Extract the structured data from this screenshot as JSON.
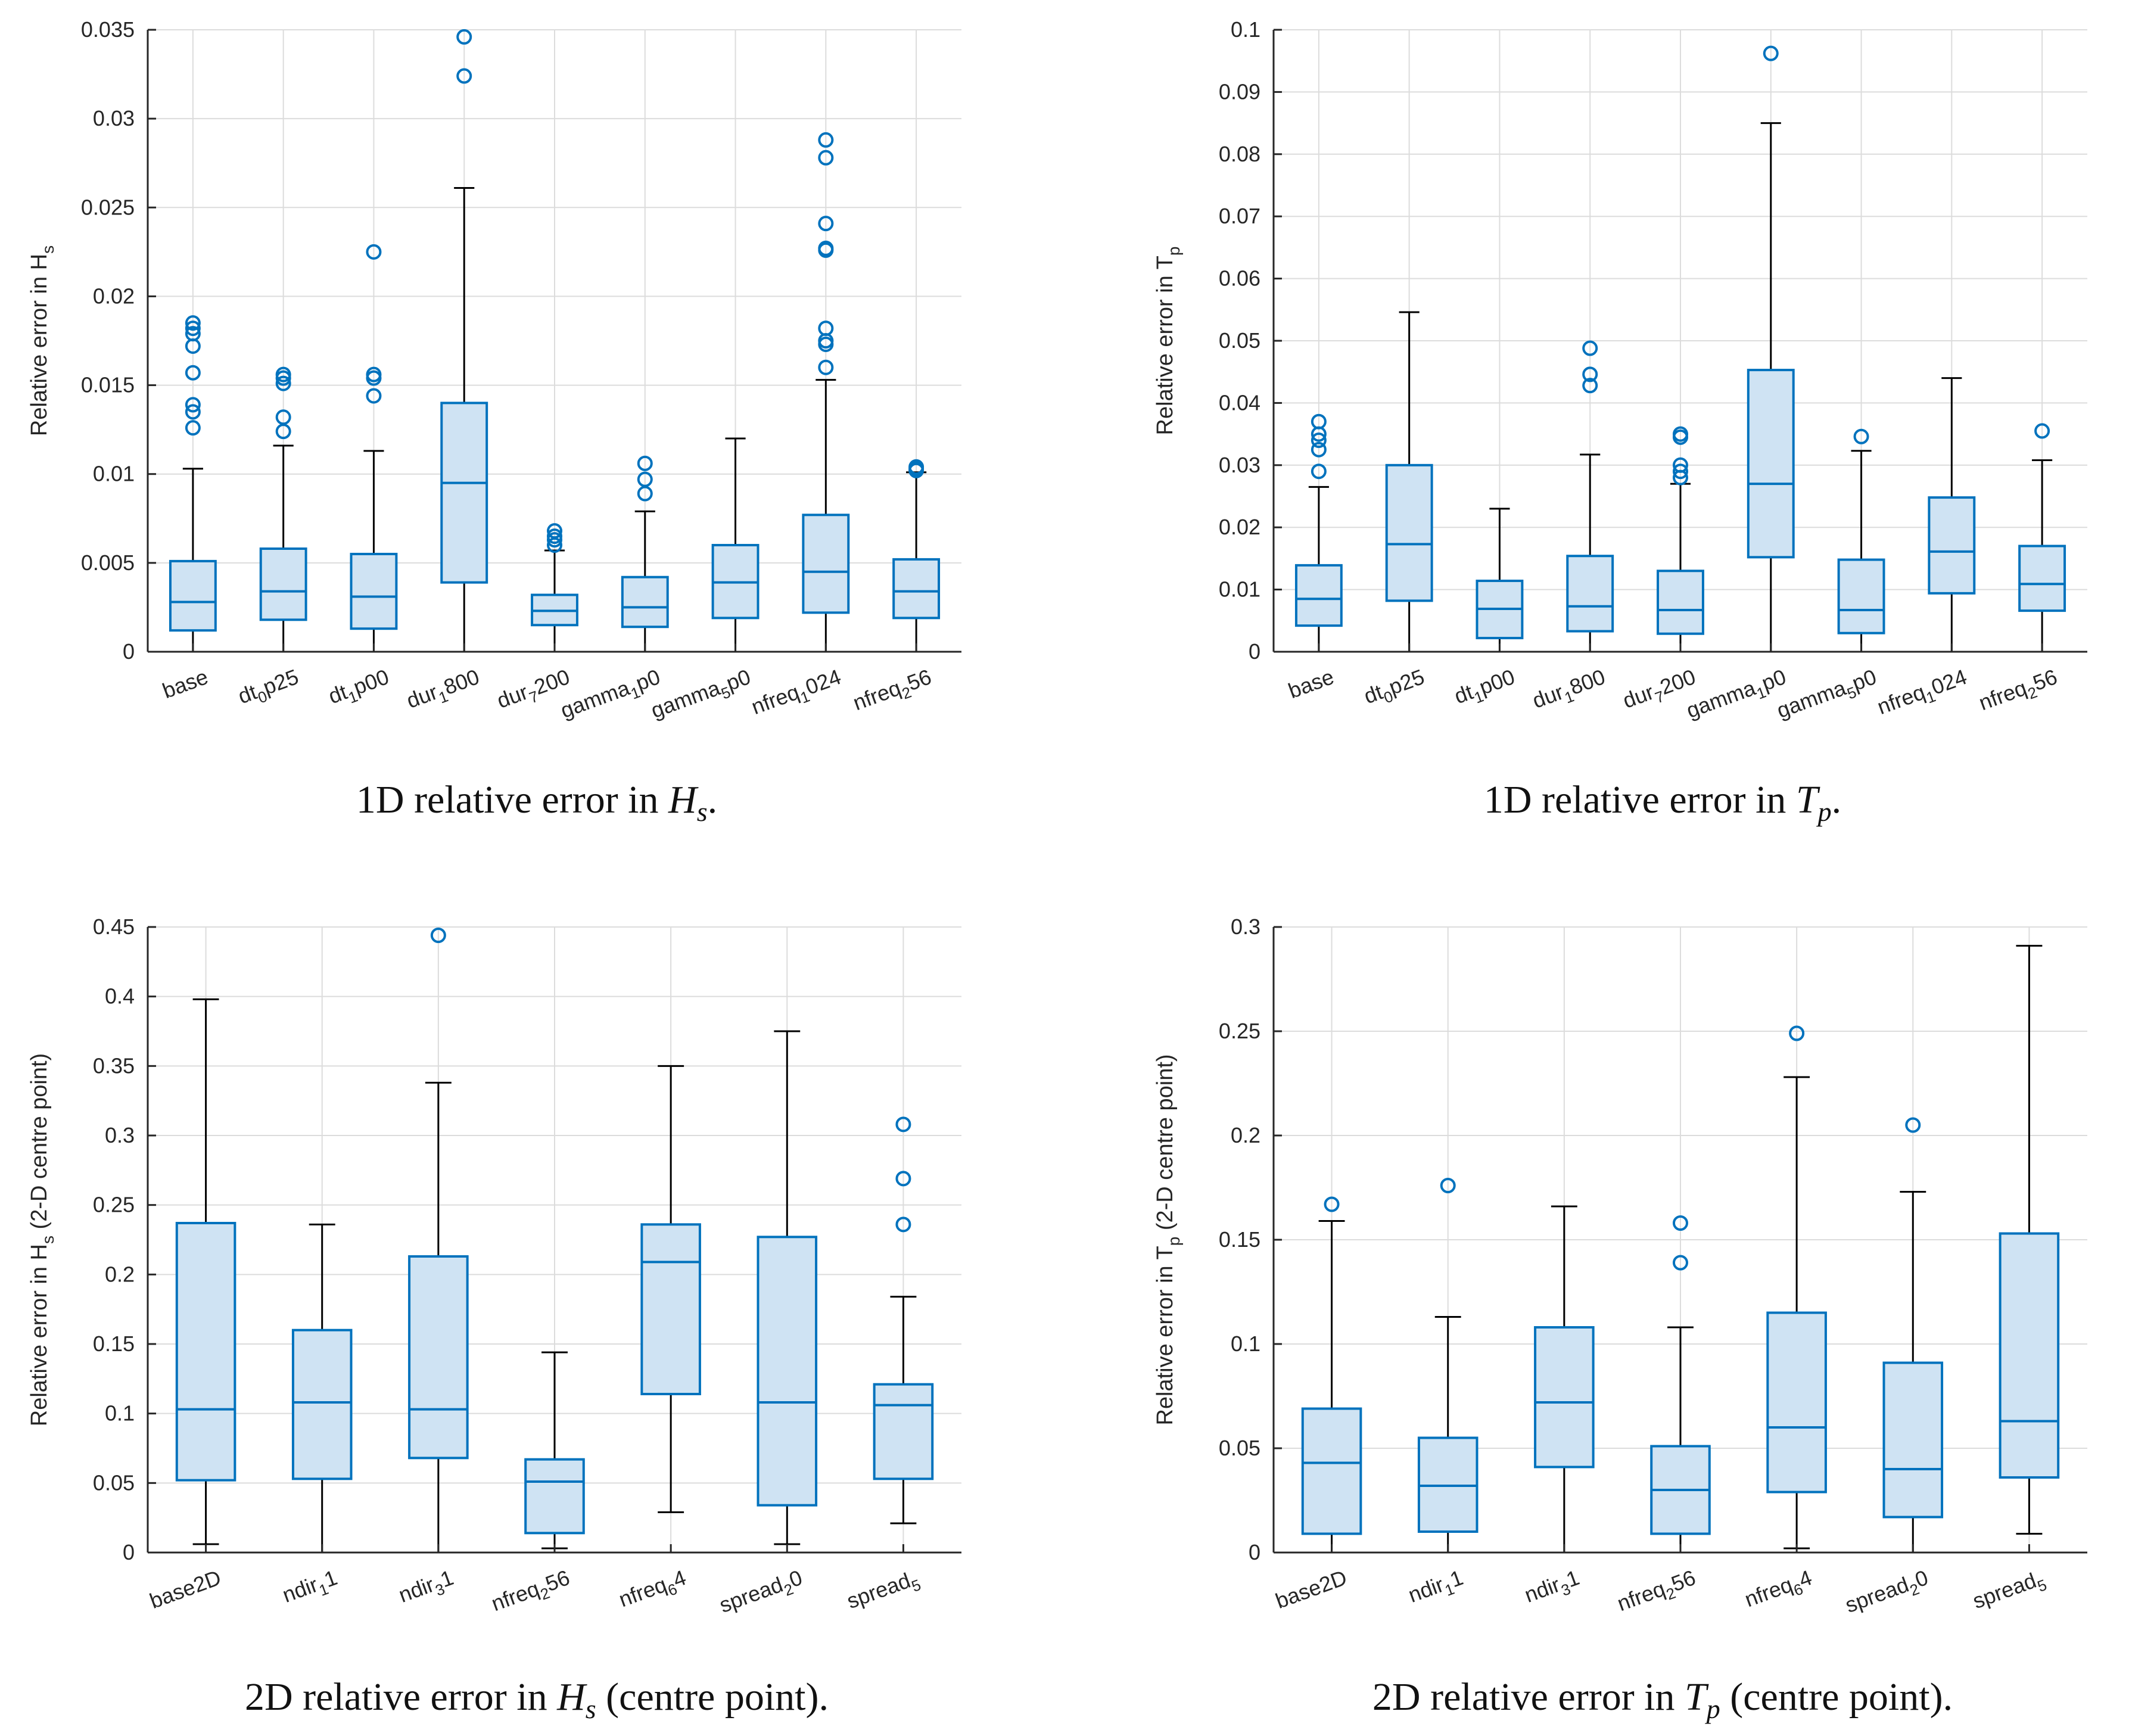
{
  "chart_data": [
    {
      "type": "box",
      "caption": {
        "pre": "1D relative error in ",
        "sym": "H",
        "sub": "s",
        "post": "."
      },
      "ylabel": {
        "main": "Relative error in H",
        "sub": "s",
        "post": ""
      },
      "ylim": [
        0,
        0.035
      ],
      "yticks": [
        0,
        0.005,
        0.01,
        0.015,
        0.02,
        0.025,
        0.03,
        0.035
      ],
      "ytick_labels": [
        "0",
        "0.005",
        "0.01",
        "0.015",
        "0.02",
        "0.025",
        "0.03",
        "0.035"
      ],
      "grid": true,
      "categories": [
        {
          "pre": "base",
          "sub": "",
          "post": ""
        },
        {
          "pre": "dt",
          "sub": "0",
          "post": "p25"
        },
        {
          "pre": "dt",
          "sub": "1",
          "post": "p00"
        },
        {
          "pre": "dur",
          "sub": "1",
          "post": "800"
        },
        {
          "pre": "dur",
          "sub": "7",
          "post": "200"
        },
        {
          "pre": "gamma",
          "sub": "1",
          "post": "p0"
        },
        {
          "pre": "gamma",
          "sub": "5",
          "post": "p0"
        },
        {
          "pre": "nfreq",
          "sub": "1",
          "post": "024"
        },
        {
          "pre": "nfreq",
          "sub": "2",
          "post": "56"
        }
      ],
      "boxes": [
        {
          "whislo": 0,
          "q1": 0.0012,
          "med": 0.0028,
          "q3": 0.0051,
          "whishi": 0.0103,
          "fliers": [
            0.0126,
            0.0135,
            0.0139,
            0.0157,
            0.0172,
            0.0179,
            0.0182,
            0.0185
          ]
        },
        {
          "whislo": 0,
          "q1": 0.0018,
          "med": 0.0034,
          "q3": 0.0058,
          "whishi": 0.0116,
          "fliers": [
            0.0124,
            0.0132,
            0.0151,
            0.0154,
            0.0156
          ]
        },
        {
          "whislo": 0,
          "q1": 0.0013,
          "med": 0.0031,
          "q3": 0.0055,
          "whishi": 0.0113,
          "fliers": [
            0.0144,
            0.0154,
            0.0156,
            0.0225
          ]
        },
        {
          "whislo": 0,
          "q1": 0.0039,
          "med": 0.0095,
          "q3": 0.014,
          "whishi": 0.0261,
          "fliers": [
            0.0324,
            0.0346
          ]
        },
        {
          "whislo": 0,
          "q1": 0.0015,
          "med": 0.0023,
          "q3": 0.0032,
          "whishi": 0.0057,
          "fliers": [
            0.006,
            0.0063,
            0.0065,
            0.0068
          ]
        },
        {
          "whislo": 0,
          "q1": 0.0014,
          "med": 0.0025,
          "q3": 0.0042,
          "whishi": 0.0079,
          "fliers": [
            0.0089,
            0.0097,
            0.0106
          ]
        },
        {
          "whislo": 0,
          "q1": 0.0019,
          "med": 0.0039,
          "q3": 0.006,
          "whishi": 0.012,
          "fliers": []
        },
        {
          "whislo": 0,
          "q1": 0.0022,
          "med": 0.0045,
          "q3": 0.0077,
          "whishi": 0.0153,
          "fliers": [
            0.016,
            0.0173,
            0.0175,
            0.0182,
            0.0226,
            0.0227,
            0.0241,
            0.0278,
            0.0288
          ]
        },
        {
          "whislo": 0,
          "q1": 0.0019,
          "med": 0.0034,
          "q3": 0.0052,
          "whishi": 0.0101,
          "fliers": [
            0.0102,
            0.0103,
            0.0104
          ]
        }
      ]
    },
    {
      "type": "box",
      "caption": {
        "pre": "1D relative error in ",
        "sym": "T",
        "sub": "p",
        "post": "."
      },
      "ylabel": {
        "main": "Relative error in T",
        "sub": "p",
        "post": ""
      },
      "ylim": [
        0,
        0.1
      ],
      "yticks": [
        0,
        0.01,
        0.02,
        0.03,
        0.04,
        0.05,
        0.06,
        0.07,
        0.08,
        0.09,
        0.1
      ],
      "ytick_labels": [
        "0",
        "0.01",
        "0.02",
        "0.03",
        "0.04",
        "0.05",
        "0.06",
        "0.07",
        "0.08",
        "0.09",
        "0.1"
      ],
      "grid": true,
      "categories": [
        {
          "pre": "base",
          "sub": "",
          "post": ""
        },
        {
          "pre": "dt",
          "sub": "0",
          "post": "p25"
        },
        {
          "pre": "dt",
          "sub": "1",
          "post": "p00"
        },
        {
          "pre": "dur",
          "sub": "1",
          "post": "800"
        },
        {
          "pre": "dur",
          "sub": "7",
          "post": "200"
        },
        {
          "pre": "gamma",
          "sub": "1",
          "post": "p0"
        },
        {
          "pre": "gamma",
          "sub": "5",
          "post": "p0"
        },
        {
          "pre": "nfreq",
          "sub": "1",
          "post": "024"
        },
        {
          "pre": "nfreq",
          "sub": "2",
          "post": "56"
        }
      ],
      "boxes": [
        {
          "whislo": 0,
          "q1": 0.0042,
          "med": 0.0085,
          "q3": 0.0139,
          "whishi": 0.0265,
          "fliers": [
            0.029,
            0.0325,
            0.034,
            0.035,
            0.037
          ]
        },
        {
          "whislo": 0,
          "q1": 0.0082,
          "med": 0.0173,
          "q3": 0.03,
          "whishi": 0.0546,
          "fliers": []
        },
        {
          "whislo": 0,
          "q1": 0.0022,
          "med": 0.0069,
          "q3": 0.0114,
          "whishi": 0.023,
          "fliers": []
        },
        {
          "whislo": 0,
          "q1": 0.0033,
          "med": 0.0073,
          "q3": 0.0154,
          "whishi": 0.0317,
          "fliers": [
            0.0428,
            0.0446,
            0.0488
          ]
        },
        {
          "whislo": 0,
          "q1": 0.0029,
          "med": 0.0067,
          "q3": 0.013,
          "whishi": 0.027,
          "fliers": [
            0.028,
            0.029,
            0.03,
            0.0345,
            0.035
          ]
        },
        {
          "whislo": 0,
          "q1": 0.0152,
          "med": 0.027,
          "q3": 0.0453,
          "whishi": 0.085,
          "fliers": [
            0.0962
          ]
        },
        {
          "whislo": 0,
          "q1": 0.003,
          "med": 0.0067,
          "q3": 0.0148,
          "whishi": 0.0323,
          "fliers": [
            0.0346
          ]
        },
        {
          "whislo": 0,
          "q1": 0.0094,
          "med": 0.0161,
          "q3": 0.0248,
          "whishi": 0.044,
          "fliers": []
        },
        {
          "whislo": 0,
          "q1": 0.0066,
          "med": 0.0109,
          "q3": 0.017,
          "whishi": 0.0308,
          "fliers": [
            0.0355
          ]
        }
      ]
    },
    {
      "type": "box",
      "caption": {
        "pre": "2D relative error in ",
        "sym": "H",
        "sub": "s",
        "post": " (centre point)."
      },
      "ylabel": {
        "main": "Relative error in H",
        "sub": "s",
        "post": " (2-D centre point)"
      },
      "ylim": [
        0,
        0.45
      ],
      "yticks": [
        0,
        0.05,
        0.1,
        0.15,
        0.2,
        0.25,
        0.3,
        0.35,
        0.4,
        0.45
      ],
      "ytick_labels": [
        "0",
        "0.05",
        "0.1",
        "0.15",
        "0.2",
        "0.25",
        "0.3",
        "0.35",
        "0.4",
        "0.45"
      ],
      "grid": true,
      "categories": [
        {
          "pre": "base2D",
          "sub": "",
          "post": ""
        },
        {
          "pre": "ndir",
          "sub": "1",
          "post": "1"
        },
        {
          "pre": "ndir",
          "sub": "3",
          "post": "1"
        },
        {
          "pre": "nfreq",
          "sub": "2",
          "post": "56"
        },
        {
          "pre": "nfreq",
          "sub": "6",
          "post": "4"
        },
        {
          "pre": "spread",
          "sub": "2",
          "post": "0"
        },
        {
          "pre": "spread",
          "sub": "5",
          "post": ""
        }
      ],
      "boxes": [
        {
          "whislo": 0.006,
          "q1": 0.052,
          "med": 0.103,
          "q3": 0.237,
          "whishi": 0.398,
          "fliers": []
        },
        {
          "whislo": 0,
          "q1": 0.053,
          "med": 0.108,
          "q3": 0.16,
          "whishi": 0.236,
          "fliers": []
        },
        {
          "whislo": 0,
          "q1": 0.068,
          "med": 0.103,
          "q3": 0.213,
          "whishi": 0.338,
          "fliers": [
            0.444
          ]
        },
        {
          "whislo": 0.003,
          "q1": 0.014,
          "med": 0.051,
          "q3": 0.067,
          "whishi": 0.144,
          "fliers": []
        },
        {
          "whislo": 0.029,
          "q1": 0.114,
          "med": 0.209,
          "q3": 0.236,
          "whishi": 0.35,
          "fliers": []
        },
        {
          "whislo": 0.006,
          "q1": 0.034,
          "med": 0.108,
          "q3": 0.227,
          "whishi": 0.375,
          "fliers": []
        },
        {
          "whislo": 0.021,
          "q1": 0.053,
          "med": 0.106,
          "q3": 0.121,
          "whishi": 0.184,
          "fliers": [
            0.236,
            0.269,
            0.308
          ]
        }
      ]
    },
    {
      "type": "box",
      "caption": {
        "pre": "2D relative error in ",
        "sym": "T",
        "sub": "p",
        "post": " (centre point)."
      },
      "ylabel": {
        "main": "Relative error in T",
        "sub": "p",
        "post": " (2-D centre point)"
      },
      "ylim": [
        0,
        0.3
      ],
      "yticks": [
        0,
        0.05,
        0.1,
        0.15,
        0.2,
        0.25,
        0.3
      ],
      "ytick_labels": [
        "0",
        "0.05",
        "0.1",
        "0.15",
        "0.2",
        "0.25",
        "0.3"
      ],
      "grid": true,
      "categories": [
        {
          "pre": "base2D",
          "sub": "",
          "post": ""
        },
        {
          "pre": "ndir",
          "sub": "1",
          "post": "1"
        },
        {
          "pre": "ndir",
          "sub": "3",
          "post": "1"
        },
        {
          "pre": "nfreq",
          "sub": "2",
          "post": "56"
        },
        {
          "pre": "nfreq",
          "sub": "6",
          "post": "4"
        },
        {
          "pre": "spread",
          "sub": "2",
          "post": "0"
        },
        {
          "pre": "spread",
          "sub": "5",
          "post": ""
        }
      ],
      "boxes": [
        {
          "whislo": 0,
          "q1": 0.009,
          "med": 0.043,
          "q3": 0.069,
          "whishi": 0.159,
          "fliers": [
            0.167
          ]
        },
        {
          "whislo": 0,
          "q1": 0.01,
          "med": 0.032,
          "q3": 0.055,
          "whishi": 0.113,
          "fliers": [
            0.176
          ]
        },
        {
          "whislo": 0,
          "q1": 0.041,
          "med": 0.072,
          "q3": 0.108,
          "whishi": 0.166,
          "fliers": []
        },
        {
          "whislo": 0,
          "q1": 0.009,
          "med": 0.03,
          "q3": 0.051,
          "whishi": 0.108,
          "fliers": [
            0.139,
            0.158
          ]
        },
        {
          "whislo": 0.002,
          "q1": 0.029,
          "med": 0.06,
          "q3": 0.115,
          "whishi": 0.228,
          "fliers": [
            0.249
          ]
        },
        {
          "whislo": 0,
          "q1": 0.017,
          "med": 0.04,
          "q3": 0.091,
          "whishi": 0.173,
          "fliers": [
            0.205
          ]
        },
        {
          "whislo": 0.009,
          "q1": 0.036,
          "med": 0.063,
          "q3": 0.153,
          "whishi": 0.291,
          "fliers": []
        }
      ]
    }
  ],
  "colors": {
    "box_edge": "#0072BD",
    "box_fill": "#cfe3f3",
    "whisker": "#000000",
    "grid": "#dcdcdc",
    "axis": "#262626",
    "text": "#262626"
  }
}
